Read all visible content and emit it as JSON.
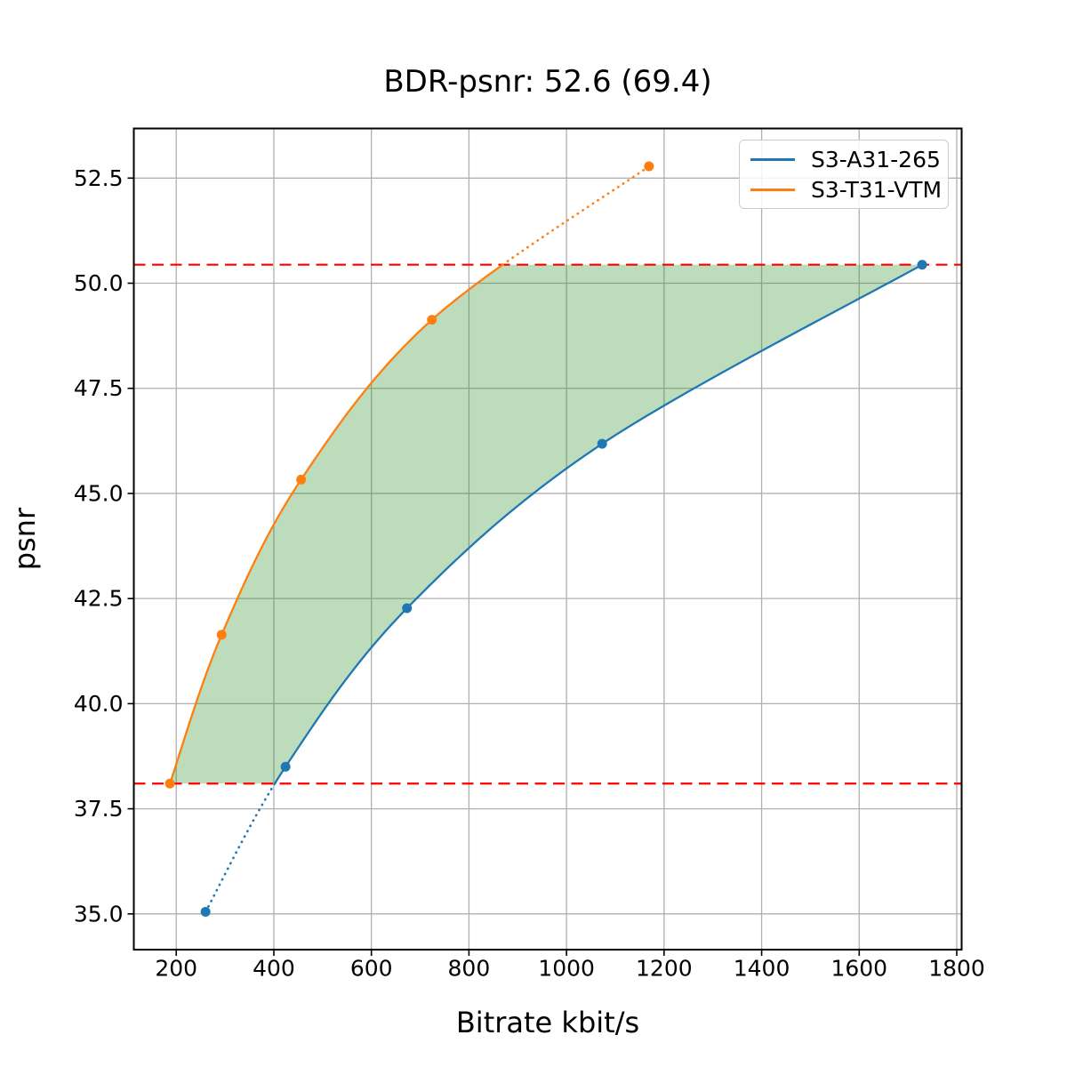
{
  "chart_data": {
    "type": "line",
    "title": "BDR-psnr: 52.6 (69.4)",
    "xlabel": "Bitrate kbit/s",
    "ylabel": "psnr",
    "xlim": [
      113,
      1810
    ],
    "ylim": [
      34.15,
      53.68
    ],
    "grid": true,
    "grid_color": "#b0b0b0",
    "x_ticks": {
      "values": [
        200,
        400,
        600,
        800,
        1000,
        1200,
        1400,
        1600,
        1800
      ],
      "labels": [
        "200",
        "400",
        "600",
        "800",
        "1000",
        "1200",
        "1400",
        "1600",
        "1800"
      ]
    },
    "y_ticks": {
      "values": [
        35.0,
        37.5,
        40.0,
        42.5,
        45.0,
        47.5,
        50.0,
        52.5
      ],
      "labels": [
        "35.0",
        "37.5",
        "40.0",
        "42.5",
        "45.0",
        "47.5",
        "50.0",
        "52.5"
      ]
    },
    "legend": {
      "position": "upper right"
    },
    "series": [
      {
        "name": "S3-A31-265",
        "color": "#1f77b4",
        "marker": "circle",
        "x": [
          260,
          424,
          673,
          1073,
          1729
        ],
        "y": [
          35.05,
          38.5,
          42.27,
          46.18,
          50.44
        ],
        "dotted_outside_overlap": "low"
      },
      {
        "name": "S3-T31-VTM",
        "color": "#ff7f0e",
        "marker": "circle",
        "x": [
          187,
          293,
          456,
          724,
          1169
        ],
        "y": [
          38.1,
          41.64,
          45.33,
          49.13,
          52.78
        ],
        "dotted_outside_overlap": "high"
      }
    ],
    "overlap_band": {
      "lower_psnr": 38.1,
      "upper_psnr": 50.44,
      "line_color": "#ff0000",
      "line_style": "dashed",
      "fill_color": "#228b22",
      "fill_alpha": 0.3
    }
  }
}
